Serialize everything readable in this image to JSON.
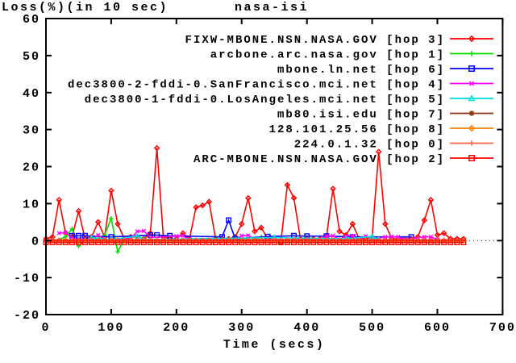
{
  "chart_data": {
    "type": "line",
    "title_left": "Loss(%)(in 10 sec)",
    "title_right": "nasa-isi",
    "xlabel": "Time (secs)",
    "xlim": [
      0,
      700
    ],
    "ylim": [
      -20,
      60
    ],
    "xticks": [
      0,
      100,
      200,
      300,
      400,
      500,
      600,
      700
    ],
    "yticks": [
      -20,
      -10,
      0,
      10,
      20,
      30,
      40,
      50,
      60
    ],
    "zero_axis": "dotted",
    "grid": false,
    "legend_position": "top-right-inside",
    "axis_color": "#000000",
    "background_color": "#ffffff",
    "series": [
      {
        "label": "FIXW-MBONE.NSN.NASA.GOV [hop 3]",
        "hop": 3,
        "color": "#ff0000",
        "marker": "diamond",
        "points": [
          [
            0,
            0.5
          ],
          [
            10,
            1
          ],
          [
            20,
            11
          ],
          [
            30,
            2
          ],
          [
            40,
            1
          ],
          [
            50,
            8
          ],
          [
            60,
            0.5
          ],
          [
            70,
            1
          ],
          [
            80,
            5
          ],
          [
            90,
            1
          ],
          [
            100,
            13.5
          ],
          [
            110,
            4.5
          ],
          [
            120,
            0.5
          ],
          [
            130,
            1
          ],
          [
            140,
            1
          ],
          [
            150,
            0.5
          ],
          [
            160,
            2
          ],
          [
            170,
            25
          ],
          [
            180,
            1
          ],
          [
            190,
            0.5
          ],
          [
            200,
            0.5
          ],
          [
            210,
            2
          ],
          [
            220,
            0.5
          ],
          [
            230,
            9
          ],
          [
            240,
            9.5
          ],
          [
            250,
            10.5
          ],
          [
            260,
            0.5
          ],
          [
            270,
            0.5
          ],
          [
            280,
            0.5
          ],
          [
            290,
            1
          ],
          [
            300,
            4.5
          ],
          [
            310,
            11.5
          ],
          [
            320,
            2.5
          ],
          [
            330,
            3.5
          ],
          [
            340,
            0.5
          ],
          [
            350,
            0.5
          ],
          [
            360,
            -0.5
          ],
          [
            370,
            15
          ],
          [
            380,
            11.5
          ],
          [
            390,
            0.5
          ],
          [
            400,
            0.5
          ],
          [
            410,
            0.5
          ],
          [
            420,
            0.5
          ],
          [
            430,
            1
          ],
          [
            440,
            14
          ],
          [
            450,
            2.5
          ],
          [
            460,
            1.5
          ],
          [
            470,
            4.5
          ],
          [
            480,
            0.5
          ],
          [
            490,
            0.5
          ],
          [
            500,
            1
          ],
          [
            510,
            24
          ],
          [
            520,
            4.5
          ],
          [
            530,
            0.5
          ],
          [
            540,
            0.5
          ],
          [
            550,
            0.5
          ],
          [
            560,
            0.5
          ],
          [
            570,
            1
          ],
          [
            580,
            5.5
          ],
          [
            590,
            11
          ],
          [
            600,
            1.5
          ],
          [
            610,
            2
          ],
          [
            620,
            0.5
          ],
          [
            630,
            0.5
          ],
          [
            640,
            0.5
          ]
        ]
      },
      {
        "label": "arcbone.arc.nasa.gov [hop 1]",
        "hop": 1,
        "color": "#00dd00",
        "marker": "plus",
        "points": [
          [
            20,
            0.3
          ],
          [
            30,
            1
          ],
          [
            40,
            3.2
          ],
          [
            50,
            -1.5
          ],
          [
            60,
            0.3
          ],
          [
            70,
            0.3
          ],
          [
            80,
            0.5
          ],
          [
            90,
            1.5
          ],
          [
            100,
            6
          ],
          [
            110,
            -3
          ],
          [
            120,
            0.3
          ],
          [
            320,
            0.3
          ],
          [
            330,
            1
          ],
          [
            340,
            0.3
          ]
        ]
      },
      {
        "label": "mbone.ln.net [hop 6]",
        "hop": 6,
        "color": "#0000ff",
        "marker": "square",
        "points": [
          [
            40,
            1.3
          ],
          [
            50,
            1.3
          ],
          [
            60,
            1.3
          ],
          [
            100,
            1
          ],
          [
            160,
            1.5
          ],
          [
            170,
            1.5
          ],
          [
            190,
            1.3
          ],
          [
            270,
            1
          ],
          [
            280,
            5.5
          ],
          [
            290,
            0.5
          ],
          [
            340,
            1.1
          ],
          [
            380,
            1.3
          ],
          [
            400,
            1.2
          ],
          [
            430,
            1.2
          ],
          [
            470,
            1
          ],
          [
            560,
            1
          ]
        ]
      },
      {
        "label": "dec3800-2-fddi-0.SanFrancisco.mci.net [hop 4]",
        "hop": 4,
        "color": "#ff00ff",
        "marker": "cross",
        "points": [
          [
            20,
            2
          ],
          [
            30,
            2.2
          ],
          [
            40,
            0.5
          ],
          [
            70,
            0.3
          ],
          [
            80,
            1.5
          ],
          [
            90,
            0.3
          ],
          [
            130,
            0.5
          ],
          [
            140,
            2.5
          ],
          [
            150,
            2.6
          ],
          [
            160,
            0.8
          ],
          [
            200,
            1.2
          ],
          [
            210,
            1.3
          ],
          [
            220,
            0.3
          ],
          [
            290,
            0.3
          ],
          [
            300,
            1.3
          ],
          [
            310,
            1.4
          ],
          [
            320,
            0.3
          ],
          [
            420,
            0.3
          ],
          [
            430,
            1.2
          ],
          [
            440,
            1.3
          ],
          [
            450,
            0.3
          ],
          [
            460,
            1.2
          ],
          [
            470,
            1.3
          ],
          [
            480,
            0.3
          ],
          [
            490,
            1.2
          ],
          [
            500,
            0.3
          ],
          [
            520,
            1
          ],
          [
            530,
            1.1
          ],
          [
            540,
            1
          ],
          [
            550,
            0.3
          ],
          [
            580,
            1
          ],
          [
            590,
            1
          ],
          [
            600,
            0.3
          ]
        ]
      },
      {
        "label": "dec3800-1-fddi-0.LosAngeles.mci.net [hop 5]",
        "hop": 5,
        "color": "#00dddd",
        "marker": "triangle",
        "points": [
          [
            70,
            0.8
          ],
          [
            100,
            0.3
          ],
          [
            140,
            1.2
          ],
          [
            150,
            0.3
          ],
          [
            350,
            0.8
          ],
          [
            460,
            0.5
          ],
          [
            500,
            1.1
          ],
          [
            510,
            0.3
          ]
        ]
      },
      {
        "label": "mb80.isi.edu [hop 7]",
        "hop": 7,
        "color": "#8b3513",
        "marker": "star",
        "baseline": {
          "value": 0,
          "from": 0,
          "to": 640,
          "step": 10
        }
      },
      {
        "label": "128.101.25.56 [hop 8]",
        "hop": 8,
        "color": "#ff8000",
        "marker": "diamond",
        "baseline": {
          "value": 0,
          "from": 0,
          "to": 640,
          "step": 10
        }
      },
      {
        "label": "224.0.1.32 [hop 0]",
        "hop": 0,
        "color": "#ff6347",
        "marker": "plus",
        "baseline": {
          "value": 0.2,
          "from": 0,
          "to": 640,
          "step": 10
        }
      },
      {
        "label": "ARC-MBONE.NSN.NASA.GOV [hop 2]",
        "hop": 2,
        "color": "#ff0000",
        "marker": "square",
        "baseline": {
          "value": -0.5,
          "from": 0,
          "to": 640,
          "step": 10
        }
      }
    ]
  }
}
